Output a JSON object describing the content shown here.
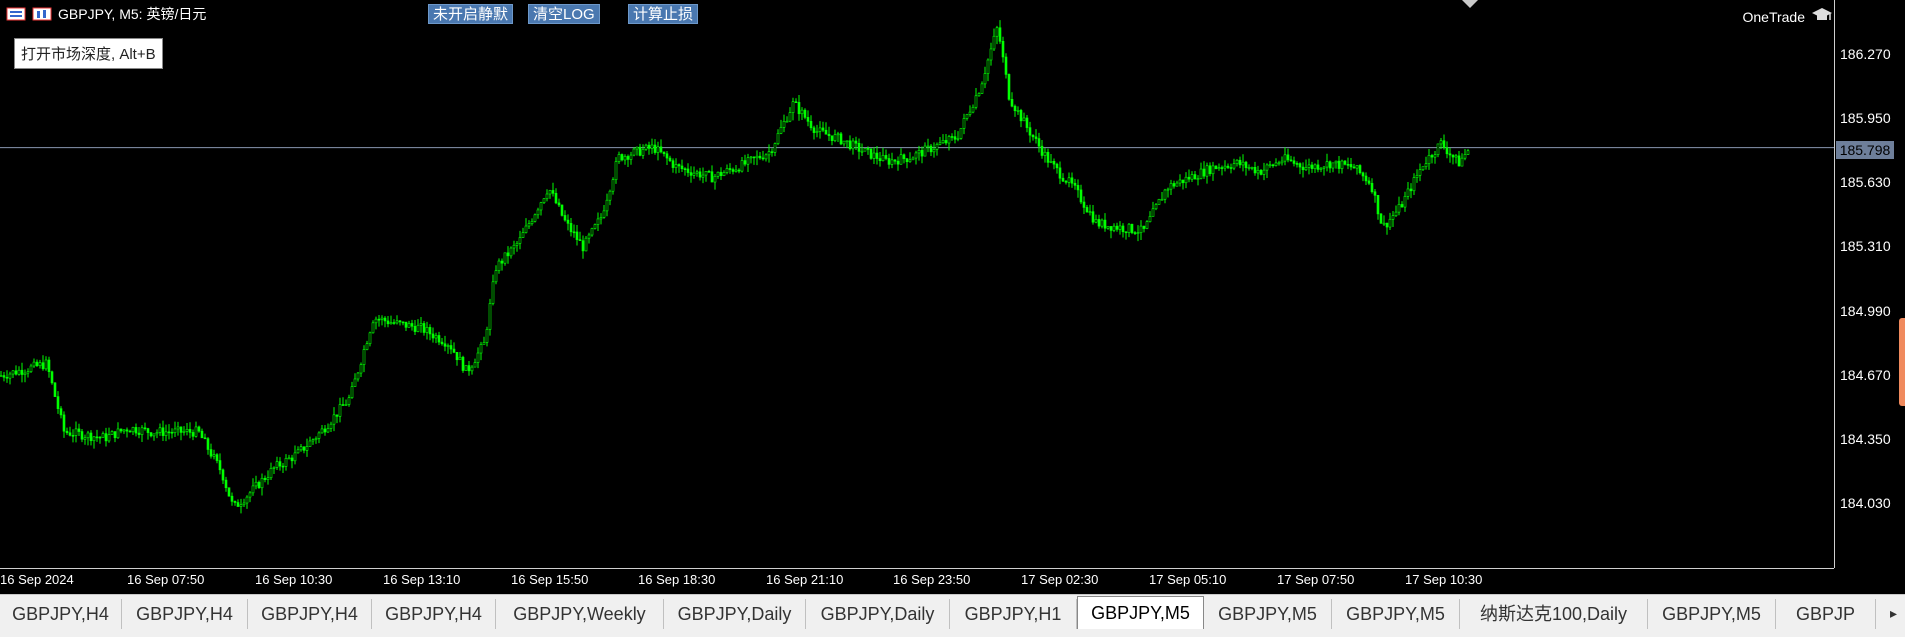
{
  "header": {
    "symbol_title": "GBPJPY, M5:  英镑/日元"
  },
  "toolbar_buttons": [
    {
      "label": "未开启静默"
    },
    {
      "label": "清空LOG"
    },
    {
      "label": "计算止损"
    }
  ],
  "tooltip": "打开市场深度, Alt+B",
  "brand": "OneTrade",
  "price_axis": {
    "labels": [
      "186.270",
      "185.950",
      "185.630",
      "185.310",
      "184.990",
      "184.670",
      "184.350",
      "184.030"
    ],
    "current_price": "185.798"
  },
  "time_axis": {
    "labels": [
      "16 Sep 2024",
      "16 Sep 07:50",
      "16 Sep 10:30",
      "16 Sep 13:10",
      "16 Sep 15:50",
      "16 Sep 18:30",
      "16 Sep 21:10",
      "16 Sep 23:50",
      "17 Sep 02:30",
      "17 Sep 05:10",
      "17 Sep 07:50",
      "17 Sep 10:30"
    ]
  },
  "tabs": [
    {
      "label": "GBPJPY,H4"
    },
    {
      "label": "GBPJPY,H4"
    },
    {
      "label": "GBPJPY,H4"
    },
    {
      "label": "GBPJPY,H4"
    },
    {
      "label": "GBPJPY,Weekly"
    },
    {
      "label": "GBPJPY,Daily"
    },
    {
      "label": "GBPJPY,Daily"
    },
    {
      "label": "GBPJPY,H1"
    },
    {
      "label": "GBPJPY,M5",
      "active": true
    },
    {
      "label": "GBPJPY,M5"
    },
    {
      "label": "GBPJPY,M5"
    },
    {
      "label": "纳斯达克100,Daily"
    },
    {
      "label": "GBPJPY,M5"
    },
    {
      "label": "GBPJP"
    }
  ],
  "colors": {
    "background": "#000000",
    "candle": "#00ff00",
    "price_line": "#8896b0",
    "button_bg": "#4a78b0"
  },
  "icons": {
    "header_icons": [
      "chart-window-icon",
      "symbol-icon"
    ],
    "brand_icon": "graduation-cap-icon",
    "tab_scroll": "scroll-right-icon"
  },
  "chart_data": {
    "type": "candlestick",
    "symbol": "GBPJPY",
    "timeframe": "M5",
    "y_ticks": [
      186.27,
      185.95,
      185.63,
      185.31,
      184.99,
      184.67,
      184.35,
      184.03
    ],
    "ylim": [
      183.86,
      186.44
    ],
    "current_price": 185.798,
    "x_ticks": [
      "16 Sep 2024",
      "16 Sep 07:50",
      "16 Sep 10:30",
      "16 Sep 13:10",
      "16 Sep 15:50",
      "16 Sep 18:30",
      "16 Sep 21:10",
      "16 Sep 23:50",
      "17 Sep 02:30",
      "17 Sep 05:10",
      "17 Sep 07:50",
      "17 Sep 10:30"
    ],
    "path_points": [
      [
        0,
        184.66
      ],
      [
        40,
        184.72
      ],
      [
        55,
        184.38
      ],
      [
        90,
        184.35
      ],
      [
        110,
        184.4
      ],
      [
        130,
        184.38
      ],
      [
        170,
        184.38
      ],
      [
        190,
        184.18
      ],
      [
        200,
        184.0
      ],
      [
        215,
        184.08
      ],
      [
        235,
        184.2
      ],
      [
        255,
        184.27
      ],
      [
        275,
        184.38
      ],
      [
        300,
        184.55
      ],
      [
        320,
        184.95
      ],
      [
        340,
        184.92
      ],
      [
        360,
        184.9
      ],
      [
        385,
        184.82
      ],
      [
        400,
        184.68
      ],
      [
        415,
        184.82
      ],
      [
        425,
        185.2
      ],
      [
        445,
        185.33
      ],
      [
        470,
        185.6
      ],
      [
        485,
        185.42
      ],
      [
        500,
        185.3
      ],
      [
        515,
        185.45
      ],
      [
        530,
        185.75
      ],
      [
        560,
        185.8
      ],
      [
        580,
        185.7
      ],
      [
        610,
        185.65
      ],
      [
        640,
        185.72
      ],
      [
        660,
        185.78
      ],
      [
        680,
        186.02
      ],
      [
        700,
        185.88
      ],
      [
        720,
        185.84
      ],
      [
        740,
        185.78
      ],
      [
        760,
        185.73
      ],
      [
        780,
        185.75
      ],
      [
        800,
        185.8
      ],
      [
        820,
        185.85
      ],
      [
        840,
        186.1
      ],
      [
        855,
        186.4
      ],
      [
        865,
        186.05
      ],
      [
        880,
        185.9
      ],
      [
        900,
        185.72
      ],
      [
        920,
        185.6
      ],
      [
        940,
        185.42
      ],
      [
        960,
        185.4
      ],
      [
        980,
        185.38
      ],
      [
        1000,
        185.6
      ],
      [
        1020,
        185.65
      ],
      [
        1040,
        185.7
      ],
      [
        1060,
        185.72
      ],
      [
        1080,
        185.68
      ],
      [
        1100,
        185.74
      ],
      [
        1120,
        185.7
      ],
      [
        1140,
        185.72
      ],
      [
        1160,
        185.7
      ],
      [
        1175,
        185.62
      ],
      [
        1185,
        185.4
      ],
      [
        1200,
        185.5
      ],
      [
        1220,
        185.72
      ],
      [
        1235,
        185.82
      ],
      [
        1250,
        185.72
      ],
      [
        1260,
        185.8
      ]
    ]
  }
}
